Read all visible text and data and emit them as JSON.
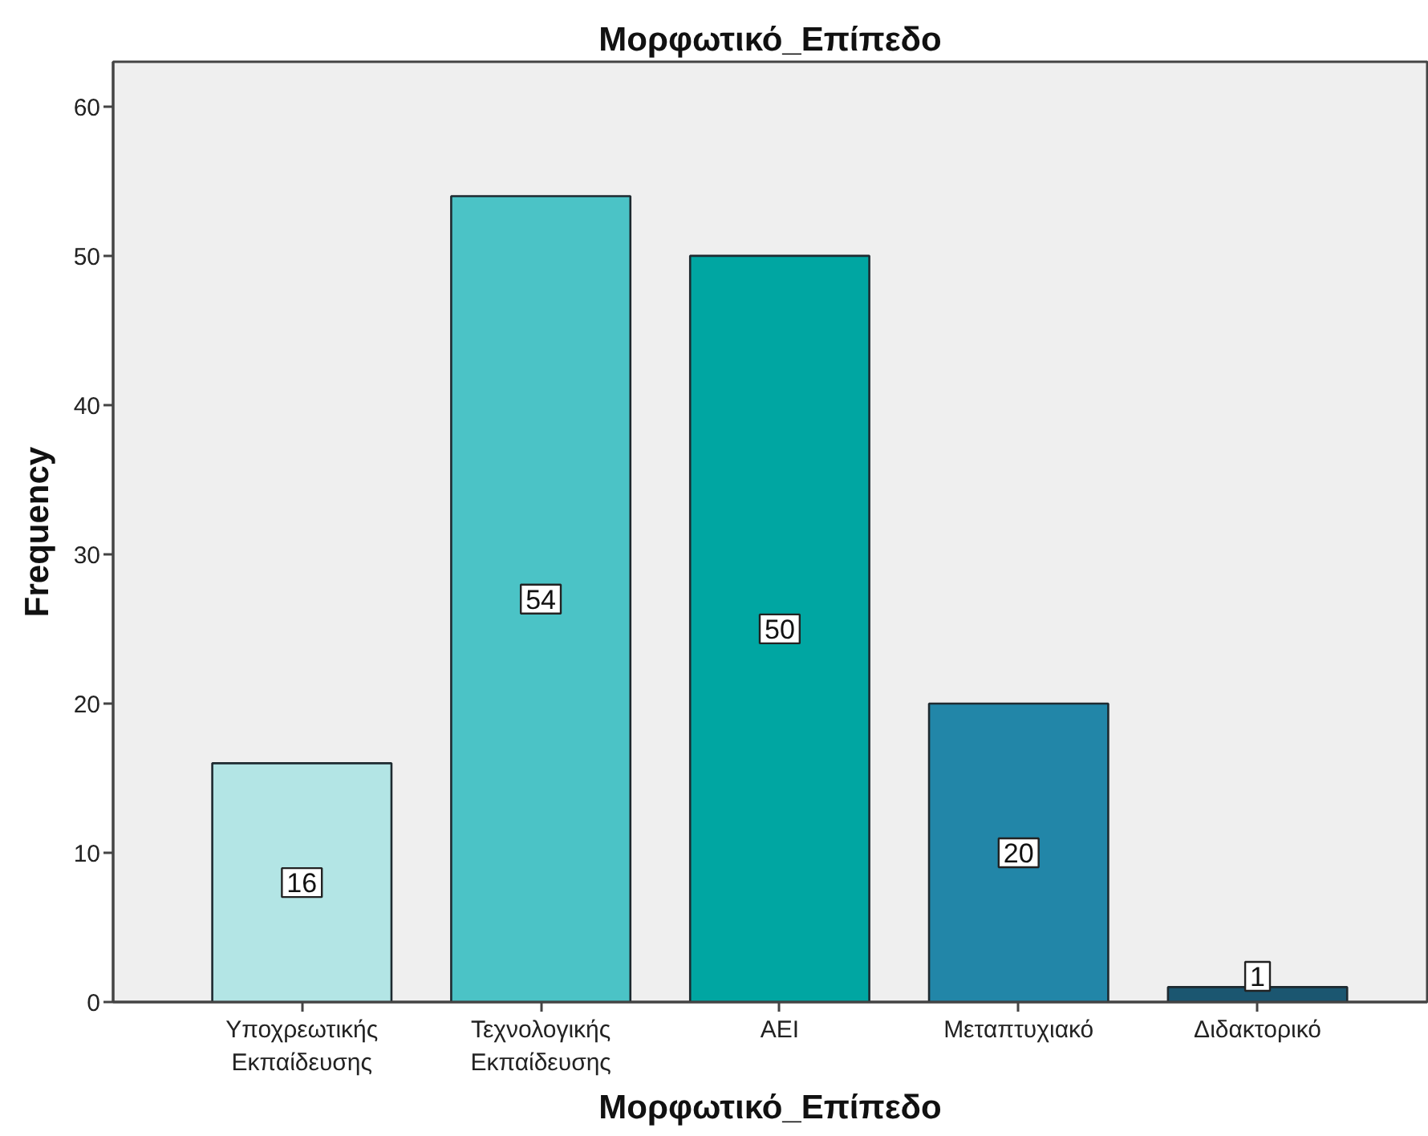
{
  "chart_data": {
    "type": "bar",
    "title": "Μορφωτικό_Επίπεδο",
    "xlabel": "Μορφωτικό_Επίπεδο",
    "ylabel": "Frequency",
    "categories": [
      "Υποχρεωτικής Εκπαίδευσης",
      "Τεχνολογικής Εκπαίδευσης",
      "ΑΕΙ",
      "Μεταπτυχιακό",
      "Διδακτορικό"
    ],
    "values": [
      16,
      54,
      50,
      20,
      1
    ],
    "colors": [
      "#b3e5e5",
      "#4bc3c6",
      "#00a6a2",
      "#2286a8",
      "#1b5670"
    ],
    "ylim": [
      0,
      63
    ],
    "yticks": [
      0,
      10,
      20,
      30,
      40,
      50,
      60
    ],
    "data_labels": true,
    "grid": false
  }
}
